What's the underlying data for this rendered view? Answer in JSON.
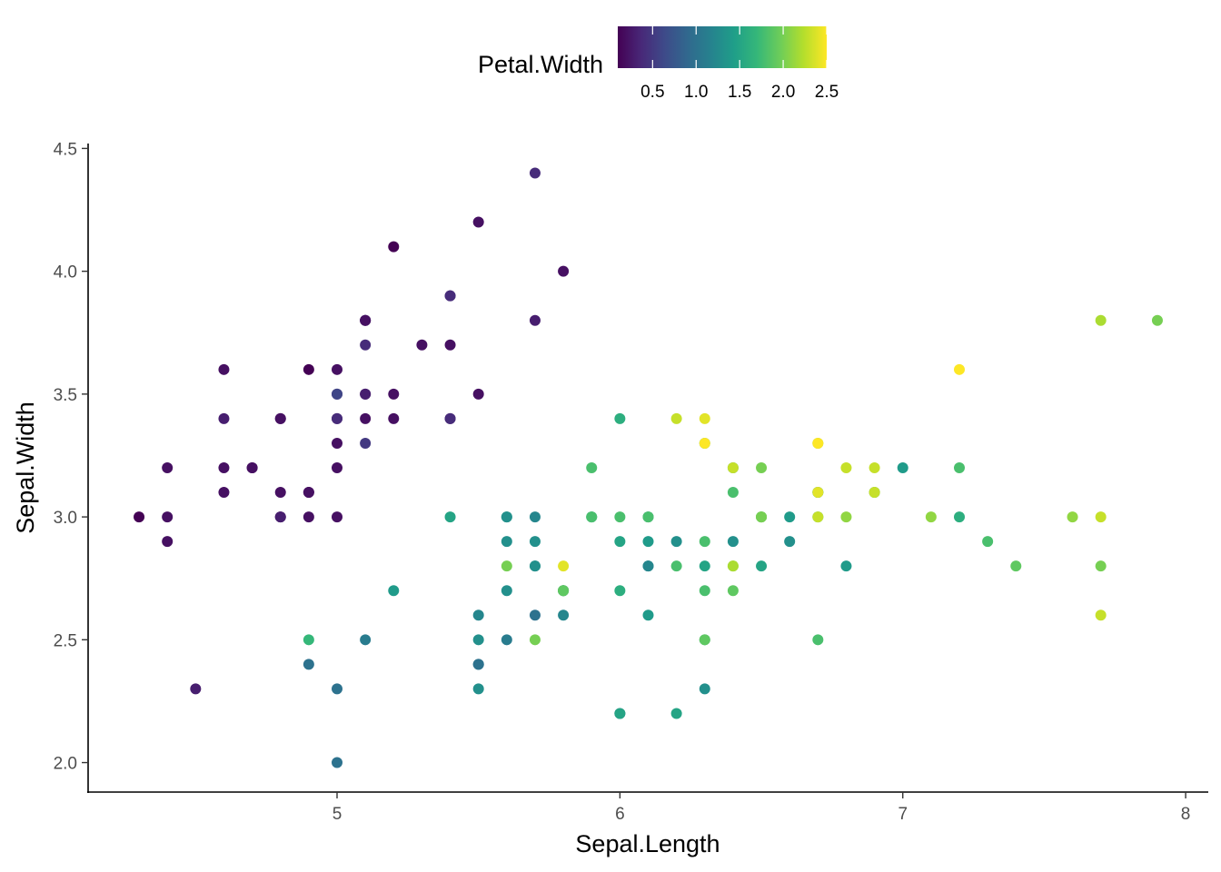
{
  "chart_data": {
    "type": "scatter",
    "title": "",
    "xlabel": "Sepal.Length",
    "ylabel": "Sepal.Width",
    "xlim": [
      4.12,
      8.08
    ],
    "ylim": [
      1.88,
      4.52
    ],
    "x_ticks": [
      5,
      6,
      7,
      8
    ],
    "x_tick_labels": [
      "5",
      "6",
      "7",
      "8"
    ],
    "y_ticks": [
      2.0,
      2.5,
      3.0,
      3.5,
      4.0,
      4.5
    ],
    "y_tick_labels": [
      "2.0",
      "2.5",
      "3.0",
      "3.5",
      "4.0",
      "4.5"
    ],
    "grid": false,
    "legend": {
      "title": "Petal.Width",
      "placement": "top",
      "kind": "colorbar",
      "colormap": "viridis",
      "range": [
        0.1,
        2.5
      ],
      "ticks": [
        0.5,
        1.0,
        1.5,
        2.0,
        2.5
      ],
      "tick_labels": [
        "0.5",
        "1.0",
        "1.5",
        "2.0",
        "2.5"
      ]
    },
    "colors": {
      "viridis": [
        "#440154",
        "#482878",
        "#3E4A89",
        "#31688E",
        "#26828E",
        "#1F9E89",
        "#35B779",
        "#6DCD59",
        "#B4DE2C",
        "#FDE725"
      ]
    },
    "color_variable": "Petal.Width",
    "points": [
      {
        "x": 5.1,
        "y": 3.5,
        "c": 0.2
      },
      {
        "x": 4.9,
        "y": 3.0,
        "c": 0.2
      },
      {
        "x": 4.7,
        "y": 3.2,
        "c": 0.2
      },
      {
        "x": 4.6,
        "y": 3.1,
        "c": 0.2
      },
      {
        "x": 5.0,
        "y": 3.6,
        "c": 0.2
      },
      {
        "x": 5.4,
        "y": 3.9,
        "c": 0.4
      },
      {
        "x": 4.6,
        "y": 3.4,
        "c": 0.3
      },
      {
        "x": 5.0,
        "y": 3.4,
        "c": 0.2
      },
      {
        "x": 4.4,
        "y": 2.9,
        "c": 0.2
      },
      {
        "x": 4.9,
        "y": 3.1,
        "c": 0.1
      },
      {
        "x": 5.4,
        "y": 3.7,
        "c": 0.2
      },
      {
        "x": 4.8,
        "y": 3.4,
        "c": 0.2
      },
      {
        "x": 4.8,
        "y": 3.0,
        "c": 0.1
      },
      {
        "x": 4.3,
        "y": 3.0,
        "c": 0.1
      },
      {
        "x": 5.8,
        "y": 4.0,
        "c": 0.2
      },
      {
        "x": 5.7,
        "y": 4.4,
        "c": 0.4
      },
      {
        "x": 5.4,
        "y": 3.9,
        "c": 0.4
      },
      {
        "x": 5.1,
        "y": 3.5,
        "c": 0.3
      },
      {
        "x": 5.7,
        "y": 3.8,
        "c": 0.3
      },
      {
        "x": 5.1,
        "y": 3.8,
        "c": 0.3
      },
      {
        "x": 5.4,
        "y": 3.4,
        "c": 0.2
      },
      {
        "x": 5.1,
        "y": 3.7,
        "c": 0.4
      },
      {
        "x": 4.6,
        "y": 3.6,
        "c": 0.2
      },
      {
        "x": 5.1,
        "y": 3.3,
        "c": 0.5
      },
      {
        "x": 4.8,
        "y": 3.4,
        "c": 0.2
      },
      {
        "x": 5.0,
        "y": 3.0,
        "c": 0.2
      },
      {
        "x": 5.0,
        "y": 3.4,
        "c": 0.4
      },
      {
        "x": 5.2,
        "y": 3.5,
        "c": 0.2
      },
      {
        "x": 5.2,
        "y": 3.4,
        "c": 0.2
      },
      {
        "x": 4.7,
        "y": 3.2,
        "c": 0.2
      },
      {
        "x": 4.8,
        "y": 3.1,
        "c": 0.2
      },
      {
        "x": 5.4,
        "y": 3.4,
        "c": 0.4
      },
      {
        "x": 5.2,
        "y": 4.1,
        "c": 0.1
      },
      {
        "x": 5.5,
        "y": 4.2,
        "c": 0.2
      },
      {
        "x": 4.9,
        "y": 3.1,
        "c": 0.2
      },
      {
        "x": 5.0,
        "y": 3.2,
        "c": 0.2
      },
      {
        "x": 5.5,
        "y": 3.5,
        "c": 0.2
      },
      {
        "x": 4.9,
        "y": 3.6,
        "c": 0.1
      },
      {
        "x": 4.4,
        "y": 3.0,
        "c": 0.2
      },
      {
        "x": 5.1,
        "y": 3.4,
        "c": 0.2
      },
      {
        "x": 5.0,
        "y": 3.5,
        "c": 0.3
      },
      {
        "x": 4.5,
        "y": 2.3,
        "c": 0.3
      },
      {
        "x": 4.4,
        "y": 3.2,
        "c": 0.2
      },
      {
        "x": 5.0,
        "y": 3.5,
        "c": 0.6
      },
      {
        "x": 5.1,
        "y": 3.8,
        "c": 0.4
      },
      {
        "x": 4.8,
        "y": 3.0,
        "c": 0.3
      },
      {
        "x": 5.1,
        "y": 3.8,
        "c": 0.2
      },
      {
        "x": 4.6,
        "y": 3.2,
        "c": 0.2
      },
      {
        "x": 5.3,
        "y": 3.7,
        "c": 0.2
      },
      {
        "x": 5.0,
        "y": 3.3,
        "c": 0.2
      },
      {
        "x": 7.0,
        "y": 3.2,
        "c": 1.4
      },
      {
        "x": 6.4,
        "y": 3.2,
        "c": 1.5
      },
      {
        "x": 6.9,
        "y": 3.1,
        "c": 1.5
      },
      {
        "x": 5.5,
        "y": 2.3,
        "c": 1.3
      },
      {
        "x": 6.5,
        "y": 2.8,
        "c": 1.5
      },
      {
        "x": 5.7,
        "y": 2.8,
        "c": 1.3
      },
      {
        "x": 6.3,
        "y": 3.3,
        "c": 1.6
      },
      {
        "x": 4.9,
        "y": 2.4,
        "c": 1.0
      },
      {
        "x": 6.6,
        "y": 2.9,
        "c": 1.3
      },
      {
        "x": 5.2,
        "y": 2.7,
        "c": 1.4
      },
      {
        "x": 5.0,
        "y": 2.0,
        "c": 1.0
      },
      {
        "x": 5.9,
        "y": 3.0,
        "c": 1.5
      },
      {
        "x": 6.0,
        "y": 2.2,
        "c": 1.0
      },
      {
        "x": 6.1,
        "y": 2.9,
        "c": 1.4
      },
      {
        "x": 5.6,
        "y": 2.9,
        "c": 1.3
      },
      {
        "x": 6.7,
        "y": 3.1,
        "c": 1.4
      },
      {
        "x": 5.6,
        "y": 3.0,
        "c": 1.5
      },
      {
        "x": 5.8,
        "y": 2.7,
        "c": 1.0
      },
      {
        "x": 6.2,
        "y": 2.2,
        "c": 1.5
      },
      {
        "x": 5.6,
        "y": 2.5,
        "c": 1.1
      },
      {
        "x": 5.9,
        "y": 3.2,
        "c": 1.8
      },
      {
        "x": 6.1,
        "y": 2.8,
        "c": 1.3
      },
      {
        "x": 6.3,
        "y": 2.5,
        "c": 1.5
      },
      {
        "x": 6.1,
        "y": 2.8,
        "c": 1.2
      },
      {
        "x": 6.4,
        "y": 2.9,
        "c": 1.3
      },
      {
        "x": 6.6,
        "y": 3.0,
        "c": 1.4
      },
      {
        "x": 6.8,
        "y": 2.8,
        "c": 1.4
      },
      {
        "x": 6.7,
        "y": 3.0,
        "c": 1.7
      },
      {
        "x": 6.0,
        "y": 2.9,
        "c": 1.5
      },
      {
        "x": 5.7,
        "y": 2.6,
        "c": 1.0
      },
      {
        "x": 5.5,
        "y": 2.4,
        "c": 1.1
      },
      {
        "x": 5.5,
        "y": 2.4,
        "c": 1.0
      },
      {
        "x": 5.8,
        "y": 2.7,
        "c": 1.2
      },
      {
        "x": 6.0,
        "y": 2.7,
        "c": 1.6
      },
      {
        "x": 5.4,
        "y": 3.0,
        "c": 1.5
      },
      {
        "x": 6.0,
        "y": 3.4,
        "c": 1.6
      },
      {
        "x": 6.7,
        "y": 3.1,
        "c": 1.5
      },
      {
        "x": 6.3,
        "y": 2.3,
        "c": 1.3
      },
      {
        "x": 5.6,
        "y": 3.0,
        "c": 1.3
      },
      {
        "x": 5.5,
        "y": 2.5,
        "c": 1.3
      },
      {
        "x": 5.5,
        "y": 2.6,
        "c": 1.2
      },
      {
        "x": 6.1,
        "y": 3.0,
        "c": 1.4
      },
      {
        "x": 5.8,
        "y": 2.6,
        "c": 1.2
      },
      {
        "x": 5.0,
        "y": 2.3,
        "c": 1.0
      },
      {
        "x": 5.6,
        "y": 2.7,
        "c": 1.3
      },
      {
        "x": 5.7,
        "y": 3.0,
        "c": 1.2
      },
      {
        "x": 5.7,
        "y": 2.9,
        "c": 1.3
      },
      {
        "x": 6.2,
        "y": 2.9,
        "c": 1.3
      },
      {
        "x": 5.1,
        "y": 2.5,
        "c": 1.1
      },
      {
        "x": 5.7,
        "y": 2.8,
        "c": 1.3
      },
      {
        "x": 6.3,
        "y": 3.3,
        "c": 2.5
      },
      {
        "x": 5.8,
        "y": 2.7,
        "c": 1.9
      },
      {
        "x": 7.1,
        "y": 3.0,
        "c": 2.1
      },
      {
        "x": 6.3,
        "y": 2.9,
        "c": 1.8
      },
      {
        "x": 6.5,
        "y": 3.0,
        "c": 2.2
      },
      {
        "x": 7.6,
        "y": 3.0,
        "c": 2.1
      },
      {
        "x": 4.9,
        "y": 2.5,
        "c": 1.7
      },
      {
        "x": 7.3,
        "y": 2.9,
        "c": 1.8
      },
      {
        "x": 6.7,
        "y": 2.5,
        "c": 1.8
      },
      {
        "x": 7.2,
        "y": 3.6,
        "c": 2.5
      },
      {
        "x": 6.5,
        "y": 3.2,
        "c": 2.0
      },
      {
        "x": 6.4,
        "y": 2.7,
        "c": 1.9
      },
      {
        "x": 6.8,
        "y": 3.0,
        "c": 2.1
      },
      {
        "x": 5.7,
        "y": 2.5,
        "c": 2.0
      },
      {
        "x": 5.8,
        "y": 2.8,
        "c": 2.4
      },
      {
        "x": 6.4,
        "y": 3.2,
        "c": 2.3
      },
      {
        "x": 6.5,
        "y": 3.0,
        "c": 1.8
      },
      {
        "x": 7.7,
        "y": 3.8,
        "c": 2.2
      },
      {
        "x": 7.7,
        "y": 2.6,
        "c": 2.3
      },
      {
        "x": 6.0,
        "y": 2.2,
        "c": 1.5
      },
      {
        "x": 6.9,
        "y": 3.2,
        "c": 2.3
      },
      {
        "x": 5.6,
        "y": 2.8,
        "c": 2.0
      },
      {
        "x": 7.7,
        "y": 2.8,
        "c": 2.0
      },
      {
        "x": 6.3,
        "y": 2.7,
        "c": 1.8
      },
      {
        "x": 6.7,
        "y": 3.3,
        "c": 2.1
      },
      {
        "x": 7.2,
        "y": 3.2,
        "c": 1.8
      },
      {
        "x": 6.2,
        "y": 2.8,
        "c": 1.8
      },
      {
        "x": 6.1,
        "y": 3.0,
        "c": 1.8
      },
      {
        "x": 6.4,
        "y": 2.8,
        "c": 2.1
      },
      {
        "x": 7.2,
        "y": 3.0,
        "c": 1.6
      },
      {
        "x": 7.4,
        "y": 2.8,
        "c": 1.9
      },
      {
        "x": 7.9,
        "y": 3.8,
        "c": 2.0
      },
      {
        "x": 6.4,
        "y": 2.8,
        "c": 2.2
      },
      {
        "x": 6.3,
        "y": 2.8,
        "c": 1.5
      },
      {
        "x": 6.1,
        "y": 2.6,
        "c": 1.4
      },
      {
        "x": 7.7,
        "y": 3.0,
        "c": 2.3
      },
      {
        "x": 6.3,
        "y": 3.4,
        "c": 2.4
      },
      {
        "x": 6.4,
        "y": 3.1,
        "c": 1.8
      },
      {
        "x": 6.0,
        "y": 3.0,
        "c": 1.8
      },
      {
        "x": 6.9,
        "y": 3.1,
        "c": 2.1
      },
      {
        "x": 6.7,
        "y": 3.1,
        "c": 2.4
      },
      {
        "x": 6.9,
        "y": 3.1,
        "c": 2.3
      },
      {
        "x": 5.8,
        "y": 2.7,
        "c": 1.9
      },
      {
        "x": 6.8,
        "y": 3.2,
        "c": 2.3
      },
      {
        "x": 6.7,
        "y": 3.3,
        "c": 2.5
      },
      {
        "x": 6.7,
        "y": 3.0,
        "c": 2.3
      },
      {
        "x": 6.3,
        "y": 2.5,
        "c": 1.9
      },
      {
        "x": 6.5,
        "y": 3.0,
        "c": 2.0
      },
      {
        "x": 6.2,
        "y": 3.4,
        "c": 2.3
      },
      {
        "x": 5.9,
        "y": 3.0,
        "c": 1.8
      }
    ]
  }
}
